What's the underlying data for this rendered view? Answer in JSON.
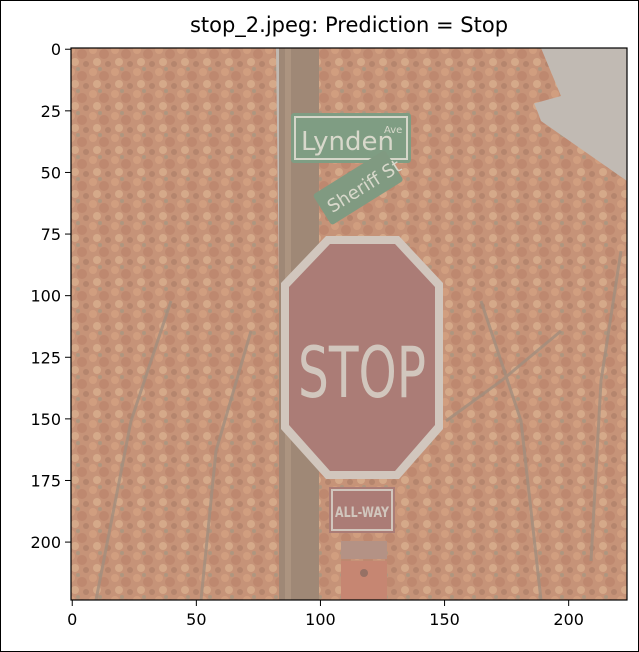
{
  "title": "stop_2.jpeg: Prediction = Stop",
  "image_content": {
    "street_sign_top": "Lynden",
    "street_sign_top_suffix": "Ave",
    "street_sign_bottom": "Sheriff St",
    "stop_sign_text": "STOP",
    "placard_text": "ALL-WAY"
  },
  "colors": {
    "sky": "#b9b2aa",
    "foliage": "#c07c58",
    "pole": "#8a6c55",
    "stop_sign": "#9a5c55",
    "sign_green": "#5d8a67"
  },
  "chart_data": {
    "type": "image",
    "xlim": [
      0,
      224
    ],
    "ylim": [
      224,
      0
    ],
    "x_ticks": [
      0,
      50,
      100,
      150,
      200
    ],
    "y_ticks": [
      0,
      25,
      50,
      75,
      100,
      125,
      150,
      175,
      200
    ]
  }
}
